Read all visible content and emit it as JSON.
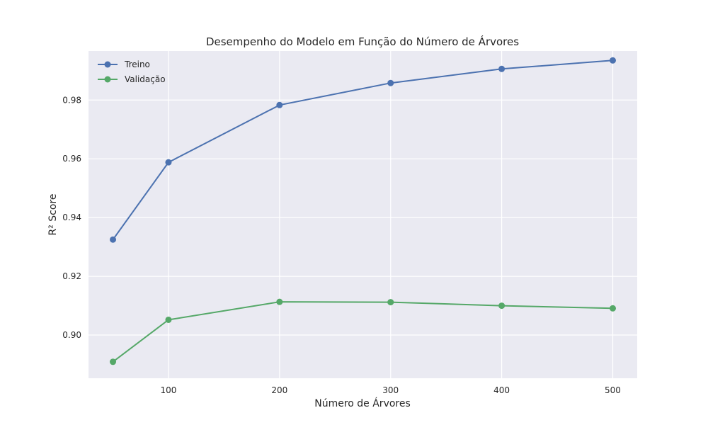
{
  "chart_data": {
    "type": "line",
    "title": "Desempenho do Modelo em Função do Número de Árvores",
    "xlabel": "Número de Árvores",
    "ylabel": "R² Score",
    "x": [
      50,
      100,
      200,
      300,
      400,
      500
    ],
    "series": [
      {
        "name": "Treino",
        "color": "#4c72b0",
        "values": [
          0.9325,
          0.9588,
          0.9783,
          0.9858,
          0.9906,
          0.9935
        ]
      },
      {
        "name": "Validação",
        "color": "#55a868",
        "values": [
          0.8909,
          0.9052,
          0.9113,
          0.9112,
          0.91,
          0.9091
        ]
      }
    ],
    "xticks": [
      100,
      200,
      300,
      400,
      500
    ],
    "yticks": [
      0.9,
      0.92,
      0.94,
      0.96,
      0.98
    ],
    "ytick_labels": [
      "0.90",
      "0.92",
      "0.94",
      "0.96",
      "0.98"
    ],
    "xlim": [
      28,
      522
    ],
    "ylim": [
      0.8853,
      0.9967
    ],
    "grid": true,
    "legend_position": "top-left",
    "background": "#eaeaf2"
  }
}
